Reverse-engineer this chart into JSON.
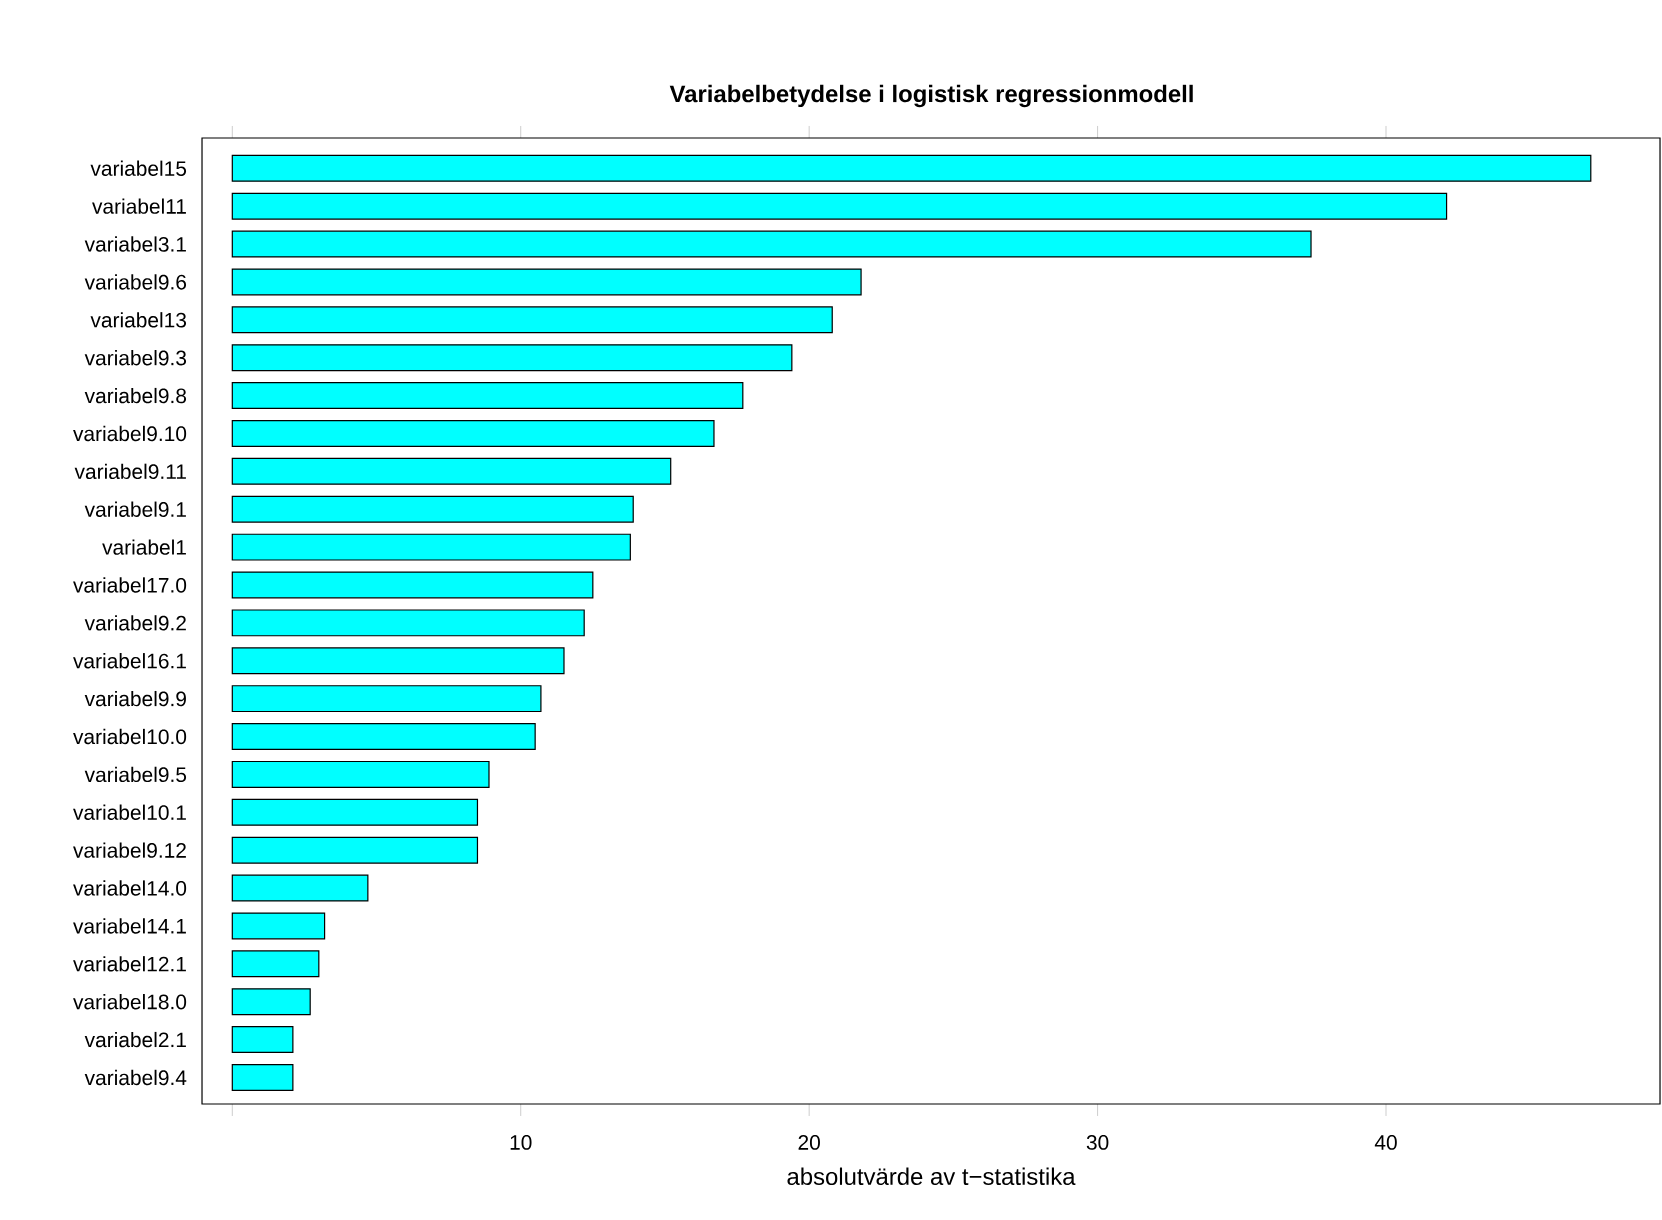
{
  "chart_data": {
    "type": "bar",
    "orientation": "horizontal",
    "title": "Variabelbetydelse i logistisk regressionmodell",
    "xlabel": "absolutvärde av t−statistika",
    "categories": [
      "variabel15",
      "variabel11",
      "variabel3.1",
      "variabel9.6",
      "variabel13",
      "variabel9.3",
      "variabel9.8",
      "variabel9.10",
      "variabel9.11",
      "variabel9.1",
      "variabel1",
      "variabel17.0",
      "variabel9.2",
      "variabel16.1",
      "variabel9.9",
      "variabel10.0",
      "variabel9.5",
      "variabel10.1",
      "variabel9.12",
      "variabel14.0",
      "variabel14.1",
      "variabel12.1",
      "variabel18.0",
      "variabel2.1",
      "variabel9.4"
    ],
    "values": [
      47.1,
      42.1,
      37.4,
      21.8,
      20.8,
      19.4,
      17.7,
      16.7,
      15.2,
      13.9,
      13.8,
      12.5,
      12.2,
      11.5,
      10.7,
      10.5,
      8.9,
      8.5,
      8.5,
      4.7,
      3.2,
      3.0,
      2.7,
      2.1,
      2.1
    ],
    "color": "#00ffff",
    "xlim": [
      -1.05,
      49.5
    ],
    "xticks": [
      {
        "value": 0,
        "label": null
      },
      10,
      20,
      30,
      40
    ]
  }
}
